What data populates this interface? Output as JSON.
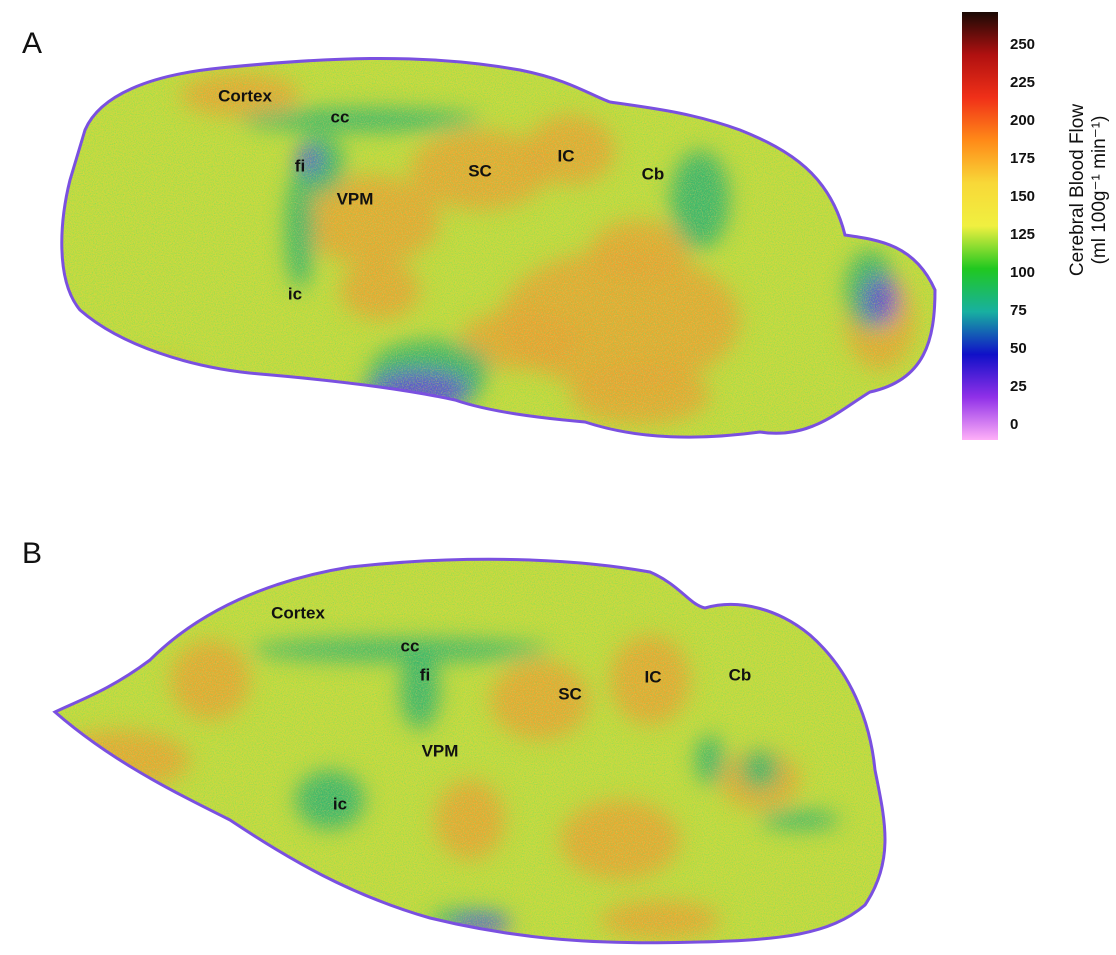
{
  "panels": [
    {
      "letter": "A",
      "labels": [
        "Cortex",
        "cc",
        "fi",
        "SC",
        "IC",
        "Cb",
        "VPM",
        "ic"
      ]
    },
    {
      "letter": "B",
      "labels": [
        "Cortex",
        "cc",
        "fi",
        "SC",
        "IC",
        "Cb",
        "VPM",
        "ic"
      ]
    }
  ],
  "colorbar": {
    "title": "Cerebral Blood Flow",
    "unit": "(ml 100g⁻¹ min⁻¹)",
    "ticks": [
      250,
      225,
      200,
      175,
      150,
      125,
      100,
      75,
      50,
      25,
      0
    ],
    "colors": [
      "#1a0a05",
      "#b01010",
      "#f03018",
      "#ff8a18",
      "#f8d838",
      "#f0f040",
      "#20c820",
      "#18b0a0",
      "#1010c8",
      "#9030e8",
      "#ffb0f8"
    ]
  }
}
